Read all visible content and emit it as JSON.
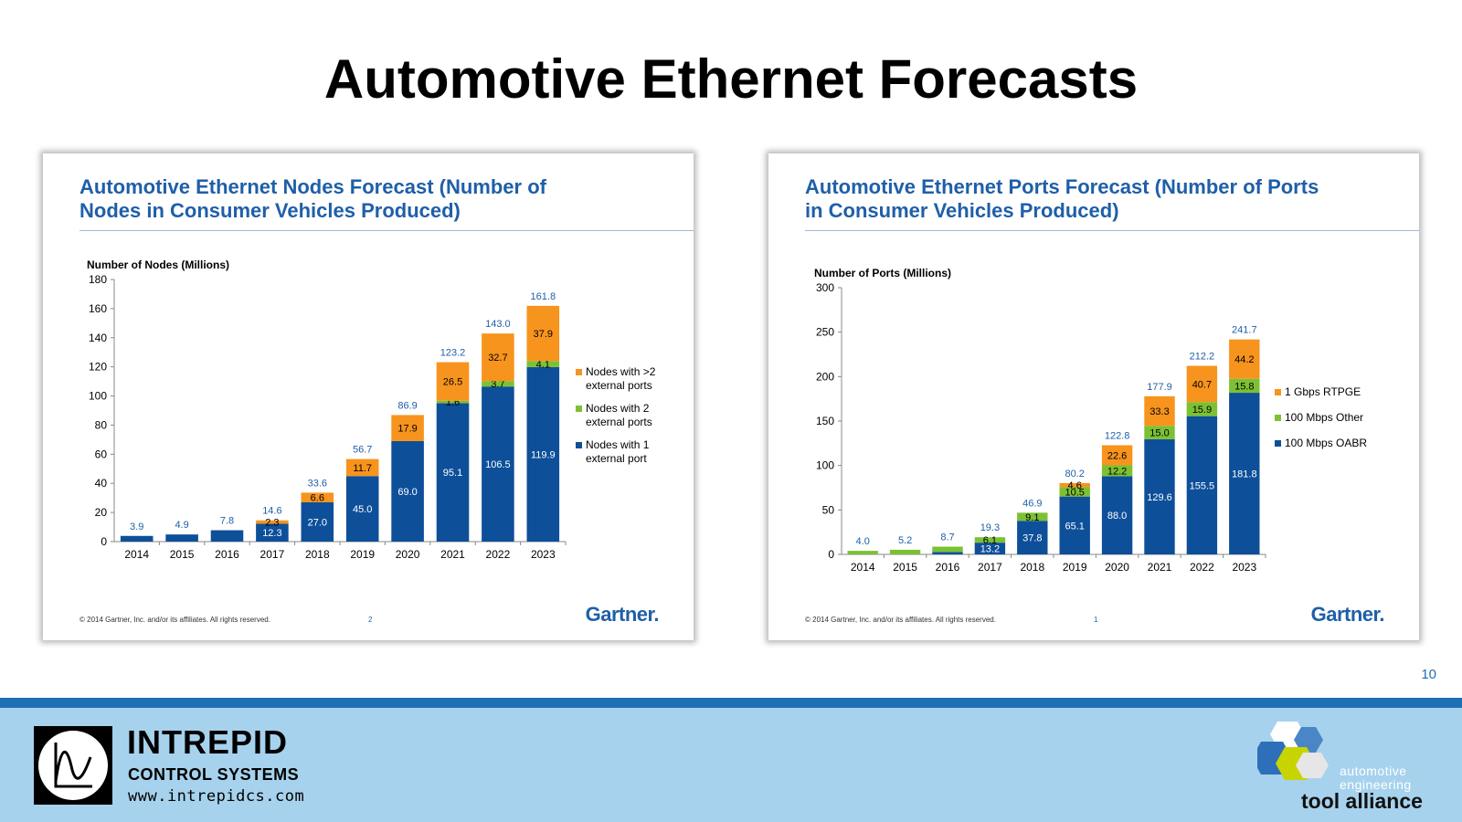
{
  "slide": {
    "title": "Automotive Ethernet Forecasts",
    "number": "10"
  },
  "colors": {
    "blue": "#0e4f9a",
    "green": "#7cc133",
    "orange": "#f7941d",
    "title_blue": "#1f5fa8",
    "total_label": "#1f5fa8",
    "band_light": "#a6d2ed",
    "band_dark": "#1f6fb5"
  },
  "cards": [
    {
      "title_line1": "Automotive Ethernet Nodes Forecast (Number of",
      "title_line2": "Nodes in Consumer Vehicles Produced)",
      "footer": "© 2014 Gartner, Inc. and/or its affiliates. All rights reserved.",
      "page": "2",
      "logo": "Gartner."
    },
    {
      "title_line1": "Automotive Ethernet Ports Forecast (Number of Ports",
      "title_line2": "in Consumer Vehicles Produced)",
      "footer": "© 2014 Gartner, Inc. and/or its affiliates. All rights reserved.",
      "page": "1",
      "logo": "Gartner."
    }
  ],
  "chart_data": [
    {
      "type": "bar",
      "stacked": true,
      "ylabel": "Number of Nodes (Millions)",
      "ylim": [
        0,
        180
      ],
      "yticks": [
        0,
        20,
        40,
        60,
        80,
        100,
        120,
        140,
        160,
        180
      ],
      "categories": [
        "2014",
        "2015",
        "2016",
        "2017",
        "2018",
        "2019",
        "2020",
        "2021",
        "2022",
        "2023"
      ],
      "totals": [
        "3.9",
        "4.9",
        "7.8",
        "14.6",
        "33.6",
        "56.7",
        "86.9",
        "123.2",
        "143.0",
        "161.8"
      ],
      "legend_position": "right",
      "series": [
        {
          "name": "Nodes with 1 external port",
          "color": "#0e4f9a",
          "values": [
            3.9,
            4.9,
            7.8,
            12.3,
            27.0,
            45.0,
            69.0,
            95.1,
            106.5,
            119.9
          ],
          "labels": [
            "",
            "",
            "",
            "12.3",
            "27.0",
            "45.0",
            "69.0",
            "95.1",
            "106.5",
            "119.9"
          ]
        },
        {
          "name": "Nodes with 2 external ports",
          "color": "#7cc133",
          "values": [
            0,
            0,
            0,
            0,
            0,
            0,
            0,
            1.6,
            3.7,
            4.1
          ],
          "labels": [
            "",
            "",
            "",
            "",
            "",
            "",
            "",
            "1.6",
            "3.7",
            "4.1"
          ]
        },
        {
          "name": "Nodes with >2 external ports",
          "color": "#f7941d",
          "values": [
            0,
            0,
            0,
            2.3,
            6.6,
            11.7,
            17.9,
            26.5,
            32.7,
            37.9
          ],
          "labels": [
            "",
            "",
            "",
            "2.3",
            "6.6",
            "11.7",
            "17.9",
            "26.5",
            "32.7",
            "37.9"
          ]
        }
      ],
      "legend": [
        {
          "line1": "Nodes with >2",
          "line2": "external ports",
          "color": "#f7941d"
        },
        {
          "line1": "Nodes with 2",
          "line2": "external ports",
          "color": "#7cc133"
        },
        {
          "line1": "Nodes with 1",
          "line2": "external port",
          "color": "#0e4f9a"
        }
      ]
    },
    {
      "type": "bar",
      "stacked": true,
      "ylabel": "Number of Ports (Millions)",
      "ylim": [
        0,
        300
      ],
      "yticks": [
        0,
        50,
        100,
        150,
        200,
        250,
        300
      ],
      "categories": [
        "2014",
        "2015",
        "2016",
        "2017",
        "2018",
        "2019",
        "2020",
        "2021",
        "2022",
        "2023"
      ],
      "totals": [
        "4.0",
        "5.2",
        "8.7",
        "19.3",
        "46.9",
        "80.2",
        "122.8",
        "177.9",
        "212.2",
        "241.7"
      ],
      "legend_position": "right",
      "series": [
        {
          "name": "100 Mbps OABR",
          "color": "#0e4f9a",
          "values": [
            0,
            0,
            2.7,
            13.2,
            37.8,
            65.1,
            88.0,
            129.6,
            155.5,
            181.8
          ],
          "labels": [
            "",
            "",
            "",
            "13.2",
            "37.8",
            "65.1",
            "88.0",
            "129.6",
            "155.5",
            "181.8"
          ]
        },
        {
          "name": "100 Mbps Other",
          "color": "#7cc133",
          "values": [
            4.0,
            5.2,
            6.0,
            6.1,
            9.1,
            10.5,
            12.2,
            15.0,
            15.9,
            15.8
          ],
          "labels": [
            "",
            "",
            "",
            "6.1",
            "9.1",
            "10.5",
            "12.2",
            "15.0",
            "15.9",
            "15.8"
          ]
        },
        {
          "name": "1 Gbps RTPGE",
          "color": "#f7941d",
          "values": [
            0,
            0,
            0,
            0,
            0,
            4.6,
            22.6,
            33.3,
            40.7,
            44.2
          ],
          "labels": [
            "",
            "",
            "",
            "",
            "",
            "4.6",
            "22.6",
            "33.3",
            "40.7",
            "44.2"
          ]
        }
      ],
      "legend": [
        {
          "line1": "1 Gbps RTPGE",
          "line2": "",
          "color": "#f7941d"
        },
        {
          "line1": "100 Mbps Other",
          "line2": "",
          "color": "#7cc133"
        },
        {
          "line1": "100 Mbps OABR",
          "line2": "",
          "color": "#0e4f9a"
        }
      ]
    }
  ],
  "footer": {
    "company": "INTREPID",
    "company_sub": "CONTROL SYSTEMS",
    "url": "www.intrepidcs.com",
    "alliance_line1": "automotive",
    "alliance_line2": "engineering",
    "alliance_line3": "tool alliance"
  }
}
